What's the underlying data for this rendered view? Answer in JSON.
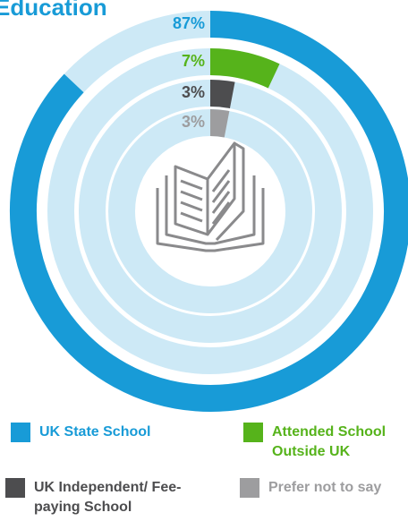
{
  "chart_data": {
    "type": "radial_bar",
    "title": "Education",
    "categories": [
      "UK State School",
      "Attended School Outside UK",
      "UK Independent/ Fee-paying School",
      "Prefer not to say"
    ],
    "values": [
      87,
      7,
      3,
      3
    ],
    "value_labels": [
      "87%",
      "7%",
      "3%",
      "3%"
    ],
    "colors": [
      "#189bd7",
      "#56b31b",
      "#4d4d4f",
      "#9d9d9f"
    ],
    "track_color": "#cde9f6",
    "ylim": [
      0,
      100
    ]
  }
}
